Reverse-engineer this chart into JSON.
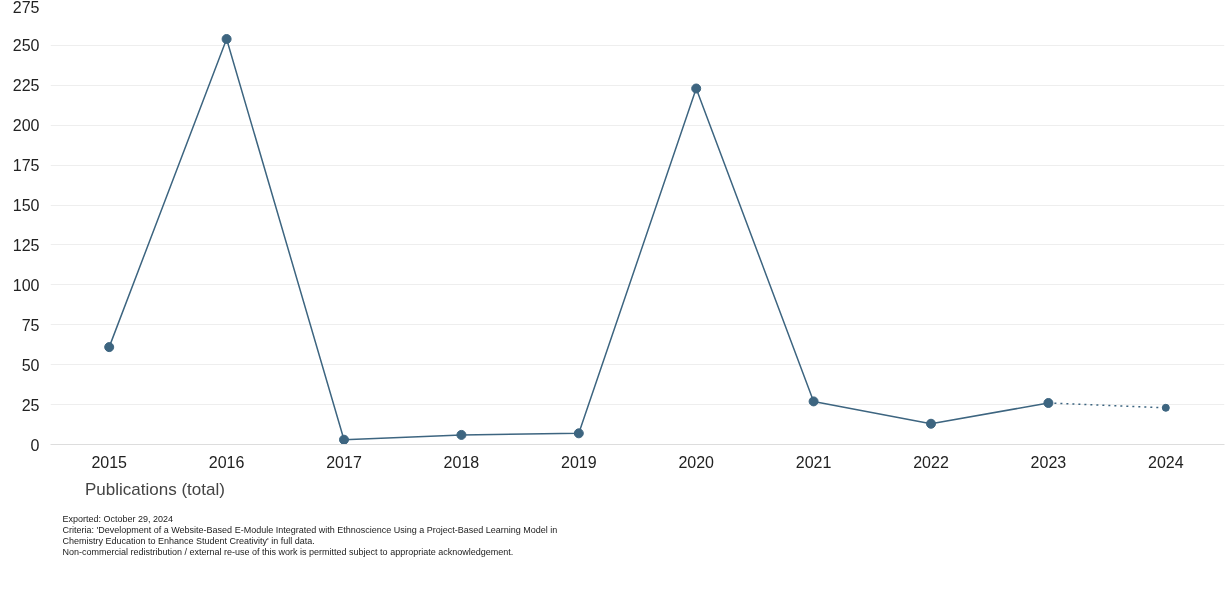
{
  "chart_data": {
    "type": "line",
    "categories": [
      "2015",
      "2016",
      "2017",
      "2018",
      "2019",
      "2020",
      "2021",
      "2022",
      "2023",
      "2024"
    ],
    "series": [
      {
        "name": "Publications (total)",
        "color": "#3d6580",
        "values": [
          61,
          254,
          3,
          6,
          7,
          223,
          27,
          13,
          26,
          null
        ],
        "line_style": "solid",
        "marker": "circle"
      },
      {
        "color": "#3d6580",
        "values": [
          null,
          null,
          null,
          null,
          null,
          null,
          null,
          null,
          26,
          23
        ],
        "line_style": "dotted",
        "marker": "circle"
      }
    ],
    "ylim": [
      0,
      275
    ],
    "yticks": [
      0,
      25,
      50,
      75,
      100,
      125,
      150,
      175,
      200,
      225,
      250,
      275
    ],
    "grid": "y",
    "legend": "bottom left",
    "annotations": [
      "Exported: October 29, 2024",
      "Criteria: 'Development of a Website-Based E-Module Integrated with Ethnoscience Using a Project-Based Learning Model in Chemistry Education to Enhance Student Creativity' in full data.",
      "Non-commercial redistribution / external re-use of this work is permitted subject to appropriate acknowledgement."
    ]
  }
}
